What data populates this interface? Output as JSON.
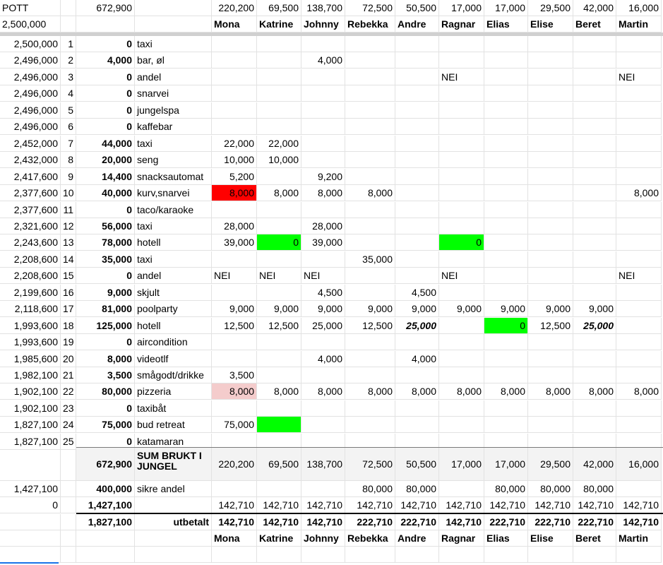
{
  "sheet": {
    "header": {
      "label": "POTT",
      "start": "2,500,000",
      "total_spent": "672,900",
      "person_totals": [
        "220,200",
        "69,500",
        "138,700",
        "72,500",
        "50,500",
        "17,000",
        "17,000",
        "29,500",
        "42,000",
        "16,000"
      ],
      "names": [
        "Mona",
        "Katrine",
        "Johnny",
        "Rebekka",
        "Andre",
        "Ragnar",
        "Elias",
        "Elise",
        "Beret",
        "Martin"
      ]
    },
    "rows": [
      {
        "bal": "2,500,000",
        "n": "1",
        "amt": "0",
        "desc": "taxi",
        "p": [
          "",
          "",
          "",
          "",
          "",
          "",
          "",
          "",
          "",
          ""
        ]
      },
      {
        "bal": "2,496,000",
        "n": "2",
        "amt": "4,000",
        "desc": "bar, øl",
        "p": [
          "",
          "",
          "4,000",
          "",
          "",
          "",
          "",
          "",
          "",
          ""
        ]
      },
      {
        "bal": "2,496,000",
        "n": "3",
        "amt": "0",
        "desc": "andel",
        "p": [
          "",
          "",
          "",
          "",
          "",
          "NEI",
          "",
          "",
          "",
          "NEI"
        ]
      },
      {
        "bal": "2,496,000",
        "n": "4",
        "amt": "0",
        "desc": "snarvei",
        "p": [
          "",
          "",
          "",
          "",
          "",
          "",
          "",
          "",
          "",
          ""
        ]
      },
      {
        "bal": "2,496,000",
        "n": "5",
        "amt": "0",
        "desc": "jungelspa",
        "p": [
          "",
          "",
          "",
          "",
          "",
          "",
          "",
          "",
          "",
          ""
        ]
      },
      {
        "bal": "2,496,000",
        "n": "6",
        "amt": "0",
        "desc": "kaffebar",
        "p": [
          "",
          "",
          "",
          "",
          "",
          "",
          "",
          "",
          "",
          ""
        ]
      },
      {
        "bal": "2,452,000",
        "n": "7",
        "amt": "44,000",
        "desc": "taxi",
        "p": [
          "22,000",
          "22,000",
          "",
          "",
          "",
          "",
          "",
          "",
          "",
          ""
        ]
      },
      {
        "bal": "2,432,000",
        "n": "8",
        "amt": "20,000",
        "desc": "seng",
        "p": [
          "10,000",
          "10,000",
          "",
          "",
          "",
          "",
          "",
          "",
          "",
          ""
        ]
      },
      {
        "bal": "2,417,600",
        "n": "9",
        "amt": "14,400",
        "desc": "snacksautomat",
        "p": [
          "5,200",
          "",
          "9,200",
          "",
          "",
          "",
          "",
          "",
          "",
          ""
        ]
      },
      {
        "bal": "2,377,600",
        "n": "10",
        "amt": "40,000",
        "desc": "kurv,snarvei",
        "p": [
          "8,000",
          "8,000",
          "8,000",
          "8,000",
          "",
          "",
          "",
          "",
          "",
          "8,000"
        ]
      },
      {
        "bal": "2,377,600",
        "n": "11",
        "amt": "0",
        "desc": "taco/karaoke",
        "p": [
          "",
          "",
          "",
          "",
          "",
          "",
          "",
          "",
          "",
          ""
        ]
      },
      {
        "bal": "2,321,600",
        "n": "12",
        "amt": "56,000",
        "desc": "taxi",
        "p": [
          "28,000",
          "",
          "28,000",
          "",
          "",
          "",
          "",
          "",
          "",
          ""
        ]
      },
      {
        "bal": "2,243,600",
        "n": "13",
        "amt": "78,000",
        "desc": "hotell",
        "p": [
          "39,000",
          "0",
          "39,000",
          "",
          "",
          "0",
          "",
          "",
          "",
          ""
        ]
      },
      {
        "bal": "2,208,600",
        "n": "14",
        "amt": "35,000",
        "desc": "taxi",
        "p": [
          "",
          "",
          "",
          "35,000",
          "",
          "",
          "",
          "",
          "",
          ""
        ]
      },
      {
        "bal": "2,208,600",
        "n": "15",
        "amt": "0",
        "desc": "andel",
        "p": [
          "NEI",
          "NEI",
          "NEI",
          "",
          "",
          "NEI",
          "",
          "",
          "",
          "NEI"
        ]
      },
      {
        "bal": "2,199,600",
        "n": "16",
        "amt": "9,000",
        "desc": "skjult",
        "p": [
          "",
          "",
          "4,500",
          "",
          "4,500",
          "",
          "",
          "",
          "",
          ""
        ]
      },
      {
        "bal": "2,118,600",
        "n": "17",
        "amt": "81,000",
        "desc": "poolparty",
        "p": [
          "9,000",
          "9,000",
          "9,000",
          "9,000",
          "9,000",
          "9,000",
          "9,000",
          "9,000",
          "9,000",
          ""
        ]
      },
      {
        "bal": "1,993,600",
        "n": "18",
        "amt": "125,000",
        "desc": "hotell",
        "p": [
          "12,500",
          "12,500",
          "25,000",
          "12,500",
          "25,000",
          "",
          "0",
          "12,500",
          "25,000",
          ""
        ]
      },
      {
        "bal": "1,993,600",
        "n": "19",
        "amt": "0",
        "desc": "aircondition",
        "p": [
          "",
          "",
          "",
          "",
          "",
          "",
          "",
          "",
          "",
          ""
        ]
      },
      {
        "bal": "1,985,600",
        "n": "20",
        "amt": "8,000",
        "desc": "videotlf",
        "p": [
          "",
          "",
          "4,000",
          "",
          "4,000",
          "",
          "",
          "",
          "",
          ""
        ]
      },
      {
        "bal": "1,982,100",
        "n": "21",
        "amt": "3,500",
        "desc": "smågodt/drikke",
        "p": [
          "3,500",
          "",
          "",
          "",
          "",
          "",
          "",
          "",
          "",
          ""
        ]
      },
      {
        "bal": "1,902,100",
        "n": "22",
        "amt": "80,000",
        "desc": "pizzeria",
        "p": [
          "8,000",
          "8,000",
          "8,000",
          "8,000",
          "8,000",
          "8,000",
          "8,000",
          "8,000",
          "8,000",
          "8,000"
        ]
      },
      {
        "bal": "1,902,100",
        "n": "23",
        "amt": "0",
        "desc": "taxibåt",
        "p": [
          "",
          "",
          "",
          "",
          "",
          "",
          "",
          "",
          "",
          ""
        ]
      },
      {
        "bal": "1,827,100",
        "n": "24",
        "amt": "75,000",
        "desc": "bud retreat",
        "p": [
          "75,000",
          "",
          "",
          "",
          "",
          "",
          "",
          "",
          "",
          ""
        ]
      },
      {
        "bal": "1,827,100",
        "n": "25",
        "amt": "0",
        "desc": "katamaran",
        "p": [
          "",
          "",
          "",
          "",
          "",
          "",
          "",
          "",
          "",
          ""
        ]
      }
    ],
    "sum_row": {
      "total": "672,900",
      "label": "SUM BRUKT I JUNGEL",
      "p": [
        "220,200",
        "69,500",
        "138,700",
        "72,500",
        "50,500",
        "17,000",
        "17,000",
        "29,500",
        "42,000",
        "16,000"
      ]
    },
    "share_row": {
      "bal": "1,427,100",
      "amt": "400,000",
      "desc": "sikre andel",
      "p": [
        "",
        "",
        "",
        "80,000",
        "80,000",
        "",
        "80,000",
        "80,000",
        "80,000",
        ""
      ]
    },
    "split_row": {
      "bal": "0",
      "amt": "1,427,100",
      "p": [
        "142,710",
        "142,710",
        "142,710",
        "142,710",
        "142,710",
        "142,710",
        "142,710",
        "142,710",
        "142,710",
        "142,710"
      ]
    },
    "payout_row": {
      "amt": "1,827,100",
      "label": "utbetalt",
      "p": [
        "142,710",
        "142,710",
        "142,710",
        "222,710",
        "222,710",
        "142,710",
        "222,710",
        "222,710",
        "222,710",
        "142,710"
      ]
    },
    "footer_names": [
      "Mona",
      "Katrine",
      "Johnny",
      "Rebekka",
      "Andre",
      "Ragnar",
      "Elias",
      "Elise",
      "Beret",
      "Martin"
    ],
    "highlight_colors": {
      "red": "#ff0000",
      "green": "#00ff00",
      "pink": "#f4cccc"
    }
  }
}
